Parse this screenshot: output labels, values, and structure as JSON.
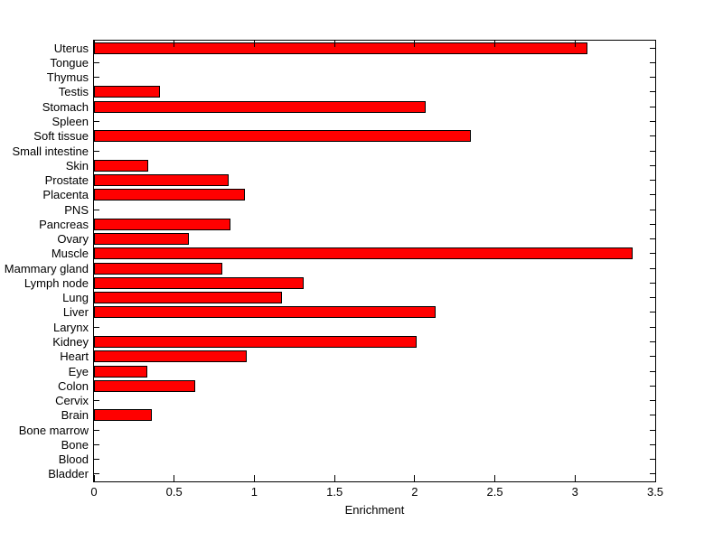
{
  "figure": {
    "background_color": "#ffffff",
    "axes_box_color": "#000000"
  },
  "chart_data": {
    "type": "bar",
    "orientation": "horizontal",
    "title": "",
    "xlabel": "Enrichment",
    "ylabel": "",
    "xlim": [
      0,
      3.5
    ],
    "x_tick_values": [
      0,
      0.5,
      1,
      1.5,
      2,
      2.5,
      3,
      3.5
    ],
    "x_tick_labels": [
      "0",
      "0.5",
      "1",
      "1.5",
      "2",
      "2.5",
      "3",
      "3.5"
    ],
    "grid": false,
    "legend": null,
    "bar_color": "#ff0000",
    "bar_edge_color": "#000000",
    "categories_top_to_bottom": [
      "Uterus",
      "Tongue",
      "Thymus",
      "Testis",
      "Stomach",
      "Spleen",
      "Soft tissue",
      "Small intestine",
      "Skin",
      "Prostate",
      "Placenta",
      "PNS",
      "Pancreas",
      "Ovary",
      "Muscle",
      "Mammary gland",
      "Lymph node",
      "Lung",
      "Liver",
      "Larynx",
      "Kidney",
      "Heart",
      "Eye",
      "Colon",
      "Cervix",
      "Brain",
      "Bone marrow",
      "Bone",
      "Blood",
      "Bladder"
    ],
    "values": [
      3.08,
      0,
      0,
      0.41,
      2.07,
      0,
      2.35,
      0,
      0.34,
      0.84,
      0.94,
      0,
      0.85,
      0.59,
      3.36,
      0.8,
      1.31,
      1.17,
      2.13,
      0,
      2.01,
      0.95,
      0.33,
      0.63,
      0,
      0.36,
      0,
      0,
      0,
      0
    ]
  }
}
